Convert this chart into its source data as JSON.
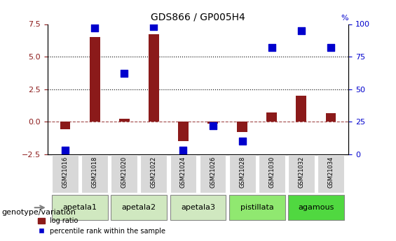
{
  "title": "GDS866 / GP005H4",
  "samples": [
    "GSM21016",
    "GSM21018",
    "GSM21020",
    "GSM21022",
    "GSM21024",
    "GSM21026",
    "GSM21028",
    "GSM21030",
    "GSM21032",
    "GSM21034"
  ],
  "log_ratio": [
    -0.55,
    6.5,
    0.25,
    6.7,
    -1.5,
    -0.15,
    -0.8,
    0.7,
    2.0,
    0.65
  ],
  "percentile_rank": [
    3,
    97,
    62,
    98,
    3,
    22,
    10,
    82,
    95,
    82
  ],
  "ylim_left": [
    -2.5,
    7.5
  ],
  "ylim_right": [
    0,
    100
  ],
  "yticks_left": [
    -2.5,
    0,
    2.5,
    5,
    7.5
  ],
  "yticks_right": [
    0,
    25,
    50,
    75,
    100
  ],
  "hlines": [
    2.5,
    5.0
  ],
  "bar_color": "#8B1A1A",
  "dot_color": "#0000CD",
  "zero_line_color": "#8B1A1A",
  "zero_line_style": "--",
  "hline_style": ":",
  "hline_color": "black",
  "groups": [
    {
      "label": "apetala1",
      "samples": [
        "GSM21016",
        "GSM21018"
      ],
      "color": "#d0e8c0"
    },
    {
      "label": "apetala2",
      "samples": [
        "GSM21020",
        "GSM21022"
      ],
      "color": "#d0e8c0"
    },
    {
      "label": "apetala3",
      "samples": [
        "GSM21024",
        "GSM21026"
      ],
      "color": "#d0e8c0"
    },
    {
      "label": "pistillata",
      "samples": [
        "GSM21028",
        "GSM21030"
      ],
      "color": "#90e870"
    },
    {
      "label": "agamous",
      "samples": [
        "GSM21032",
        "GSM21034"
      ],
      "color": "#50d840"
    }
  ],
  "legend_bar_label": "log ratio",
  "legend_dot_label": "percentile rank within the sample",
  "genotype_label": "genotype/variation",
  "left_ylabel_color": "#8B1A1A",
  "right_ylabel_color": "#0000CD",
  "bar_width": 0.35,
  "dot_size": 60
}
